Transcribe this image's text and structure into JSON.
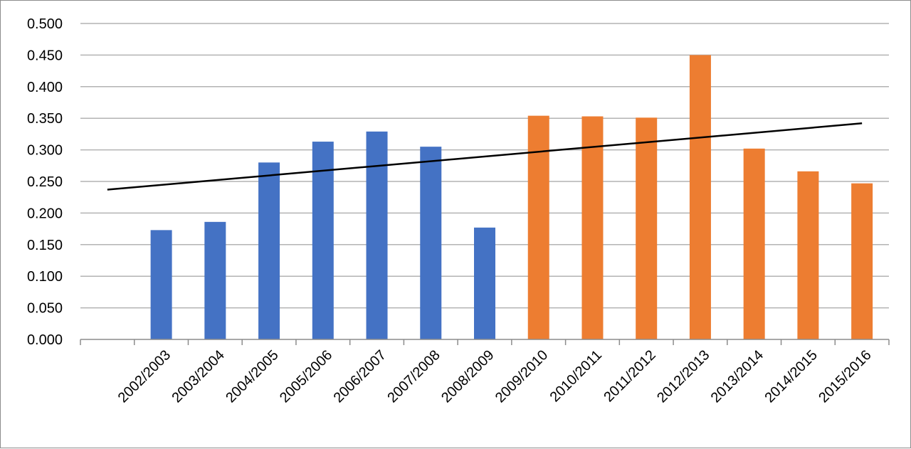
{
  "chart_data": {
    "type": "bar",
    "categories": [
      "",
      "2002/2003",
      "2003/2004",
      "2004/2005",
      "2005/2006",
      "2006/2007",
      "2007/2008",
      "2008/2009",
      "2009/2010",
      "2010/2011",
      "2011/2012",
      "2012/2013",
      "2013/2014",
      "2014/2015",
      "2015/2016"
    ],
    "values": [
      null,
      0.173,
      0.186,
      0.28,
      0.313,
      0.329,
      0.305,
      0.177,
      0.354,
      0.353,
      0.351,
      0.45,
      0.302,
      0.266,
      0.247
    ],
    "bar_colors": [
      "#4472c4",
      "#4472c4",
      "#4472c4",
      "#4472c4",
      "#4472c4",
      "#4472c4",
      "#4472c4",
      "#4472c4",
      "#ed7d31",
      "#ed7d31",
      "#ed7d31",
      "#ed7d31",
      "#ed7d31",
      "#ed7d31",
      "#ed7d31"
    ],
    "trendline": {
      "type": "linear",
      "color": "#000000",
      "start": 0.237,
      "end": 0.342
    },
    "yticks": [
      "0.000",
      "0.050",
      "0.100",
      "0.150",
      "0.200",
      "0.250",
      "0.300",
      "0.350",
      "0.400",
      "0.450",
      "0.500"
    ],
    "ylim": [
      0,
      0.5
    ],
    "grid": true,
    "legend": "none",
    "title": "",
    "xlabel": "",
    "ylabel": ""
  }
}
